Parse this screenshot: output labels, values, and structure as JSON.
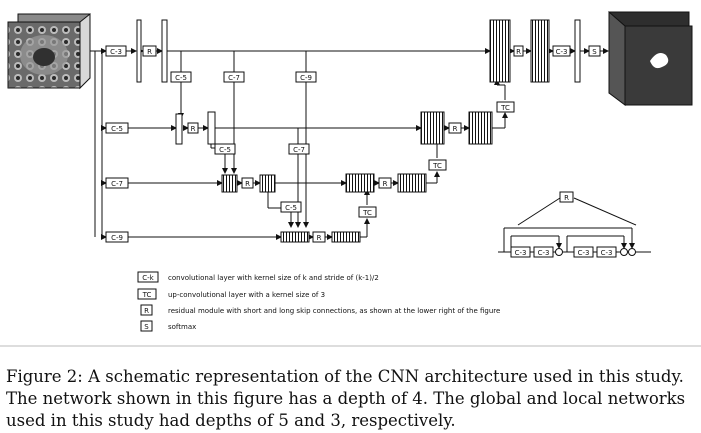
{
  "blocks": {
    "conv3": "C-3",
    "conv5": "C-5",
    "conv7": "C-7",
    "conv9": "C-9",
    "residual": "R",
    "upconv": "TC",
    "softmax": "S"
  },
  "legend": [
    {
      "key": "C-k",
      "text": "convolutional layer with kernel size of k and stride of (k-1)/2"
    },
    {
      "key": "TC",
      "text": "up-convolutional layer with a kernel size of 3"
    },
    {
      "key": "R",
      "text": "residual module with short and long skip connections, as shown at the lower right of the figure"
    },
    {
      "key": "S",
      "text": "softmax"
    }
  ],
  "caption": [
    "Figure 2: A schematic representation of the CNN architecture used in this study.",
    "The network shown in this figure has a depth of 4. The global and local networks",
    "used in this study had depths of 5 and 3, respectively."
  ],
  "colors": {
    "ink": "#111111",
    "output_volume": "#3a3a3a",
    "mask": "#ffffff"
  },
  "icons": [
    "mri-input-volume",
    "segmentation-output-volume",
    "sum-node"
  ]
}
